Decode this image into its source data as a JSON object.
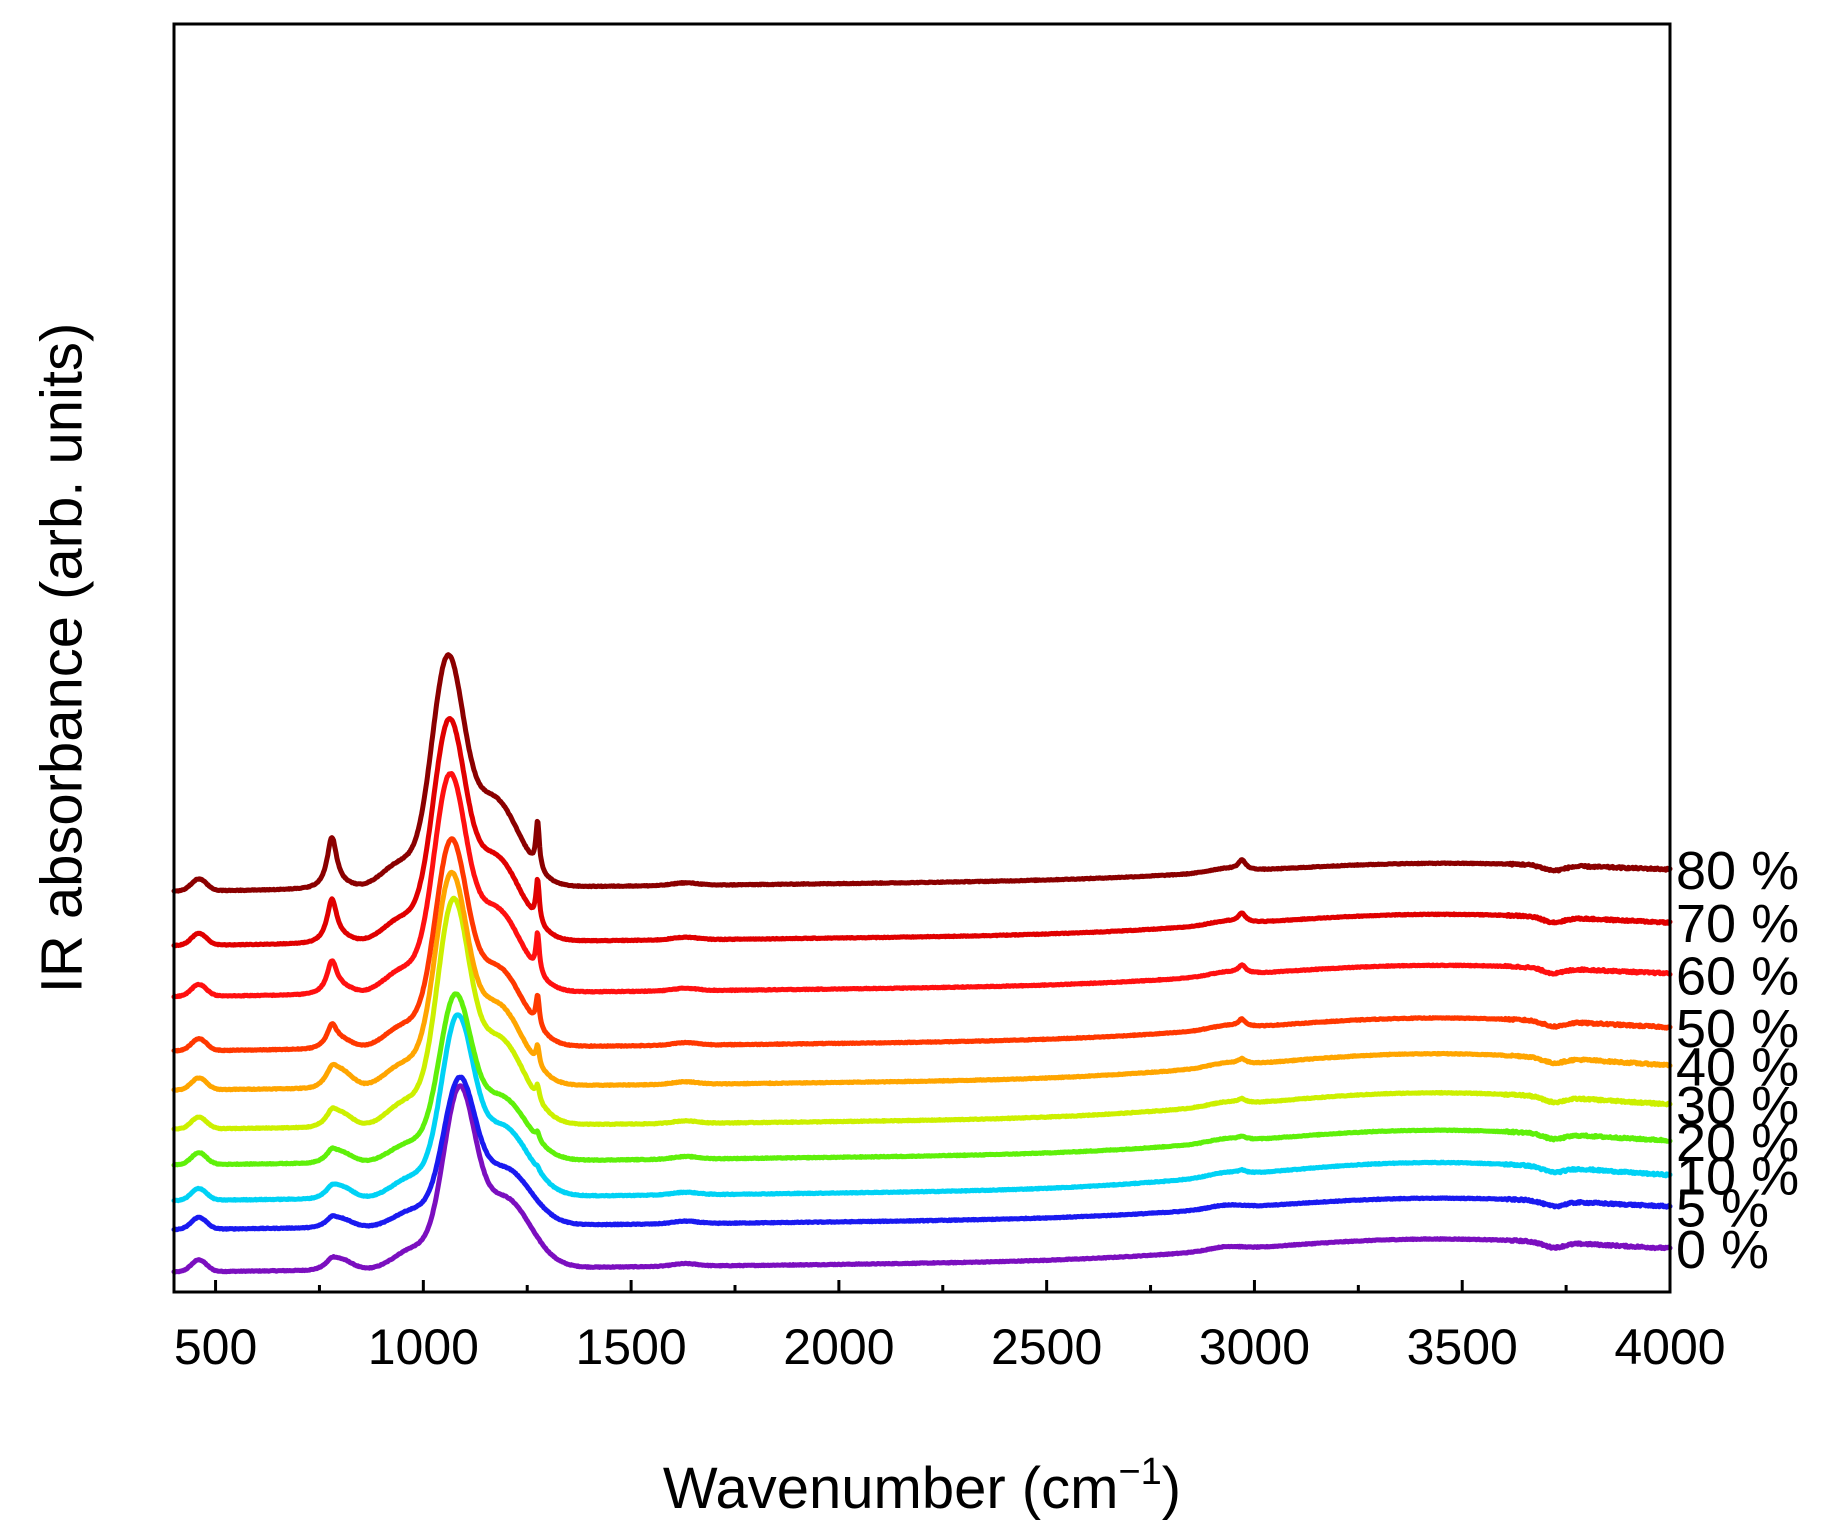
{
  "chart_data": {
    "type": "line",
    "title": "",
    "xlabel": "Wavenumber (cm",
    "xlabel_sup": "−1",
    "xlabel_end": ")",
    "ylabel": "IR absorbance (arb. units)",
    "xlim": [
      400,
      4000
    ],
    "x_ticks": [
      500,
      1000,
      1500,
      2000,
      2500,
      3000,
      3500,
      4000
    ],
    "x_tick_labels": [
      "500",
      "1000",
      "1500",
      "2000",
      "2500",
      "3000",
      "3500",
      "4000"
    ],
    "y_ticks_shown": false,
    "grid": false,
    "y_units": "arbitrary, stacked offsets",
    "series": [
      {
        "name": "0 %",
        "label": "0 %",
        "color": "#7B0FBF",
        "offset": 0.0,
        "peak_shift": 20,
        "k_main": 0.98,
        "k_780": 0.03,
        "k_800": 0.06,
        "k_1275": 0.0,
        "k_2970": 0.0,
        "k_oh": 0.11
      },
      {
        "name": "5 %",
        "label": "5 %",
        "color": "#1A1AF0",
        "offset": 0.25,
        "peak_shift": 20,
        "k_main": 0.8,
        "k_780": 0.03,
        "k_800": 0.05,
        "k_1275": 0.0,
        "k_2970": 0.0,
        "k_oh": 0.1
      },
      {
        "name": "10 %",
        "label": "10 %",
        "color": "#00D2F5",
        "offset": 0.42,
        "peak_shift": 15,
        "k_main": 0.98,
        "k_780": 0.03,
        "k_800": 0.07,
        "k_1275": 0.02,
        "k_2970": 0.015,
        "k_oh": 0.14
      },
      {
        "name": "20 %",
        "label": "20 %",
        "color": "#5FF00A",
        "offset": 0.63,
        "peak_shift": 10,
        "k_main": 0.9,
        "k_780": 0.04,
        "k_800": 0.06,
        "k_1275": 0.04,
        "k_2970": 0.015,
        "k_oh": 0.12
      },
      {
        "name": "30 %",
        "label": "30 %",
        "color": "#CCF000",
        "offset": 0.84,
        "peak_shift": 5,
        "k_main": 1.22,
        "k_780": 0.05,
        "k_800": 0.08,
        "k_1275": 0.08,
        "k_2970": 0.02,
        "k_oh": 0.13
      },
      {
        "name": "40 %",
        "label": "40 %",
        "color": "#FFA500",
        "offset": 1.07,
        "peak_shift": 0,
        "k_main": 1.15,
        "k_780": 0.06,
        "k_800": 0.1,
        "k_1275": 0.11,
        "k_2970": 0.025,
        "k_oh": 0.13
      },
      {
        "name": "50 %",
        "label": "50 %",
        "color": "#FF3800",
        "offset": 1.3,
        "peak_shift": 0,
        "k_main": 1.12,
        "k_780": 0.11,
        "k_800": 0.05,
        "k_1275": 0.18,
        "k_2970": 0.04,
        "k_oh": 0.11
      },
      {
        "name": "60 %",
        "label": "60 %",
        "color": "#FF1010",
        "offset": 1.62,
        "peak_shift": -3,
        "k_main": 1.18,
        "k_780": 0.17,
        "k_800": 0.04,
        "k_1275": 0.23,
        "k_2970": 0.045,
        "k_oh": 0.1
      },
      {
        "name": "70 %",
        "label": "70 %",
        "color": "#E00000",
        "offset": 1.92,
        "peak_shift": -5,
        "k_main": 1.2,
        "k_780": 0.24,
        "k_800": 0.03,
        "k_1275": 0.25,
        "k_2970": 0.05,
        "k_oh": 0.1
      },
      {
        "name": "80 %",
        "label": "80 %",
        "color": "#8B0000",
        "offset": 2.24,
        "peak_shift": -8,
        "k_main": 1.25,
        "k_780": 0.29,
        "k_800": 0.02,
        "k_1275": 0.28,
        "k_2970": 0.055,
        "k_oh": 0.08
      }
    ],
    "bands_cm1": {
      "main": 1065,
      "shoulder": 1180,
      "si_ch3": 1275,
      "si_c": 780,
      "si_o_si_bend": 800,
      "low": 460,
      "c_h": 2970,
      "o_h": 3400
    }
  }
}
